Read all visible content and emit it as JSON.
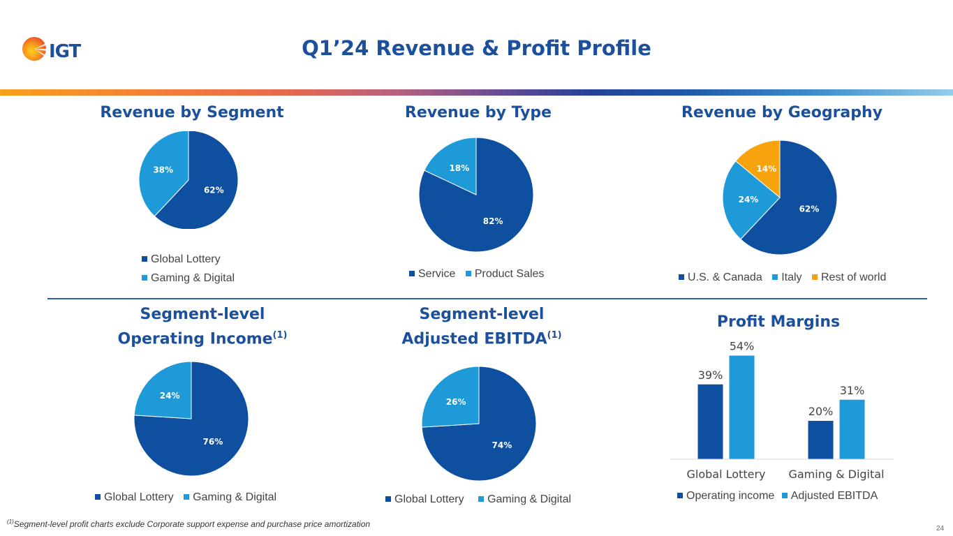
{
  "header": {
    "logo_text": "IGT",
    "title": "Q1’24 Revenue & Profit Profile"
  },
  "colors": {
    "dark_blue": "#0f4f9f",
    "light_blue": "#1e9ad8",
    "orange": "#f6a30e",
    "title_blue": "#1c4f9c"
  },
  "chart_data": [
    {
      "type": "pie",
      "title": "Revenue by Segment",
      "labels": [
        "Global Lottery",
        "Gaming & Digital"
      ],
      "values": [
        62,
        38
      ],
      "data_labels": [
        "62%",
        "38%"
      ],
      "legend_position": "bottom"
    },
    {
      "type": "pie",
      "title": "Revenue by Type",
      "labels": [
        "Service",
        "Product Sales"
      ],
      "values": [
        82,
        18
      ],
      "data_labels": [
        "82%",
        "18%"
      ],
      "legend_position": "bottom"
    },
    {
      "type": "pie",
      "title": "Revenue by Geography",
      "labels": [
        "U.S. & Canada",
        "Italy",
        "Rest of world"
      ],
      "values": [
        62,
        24,
        14
      ],
      "data_labels": [
        "62%",
        "24%",
        "14%"
      ],
      "legend_position": "bottom"
    },
    {
      "type": "pie",
      "title_line1": "Segment-level",
      "title_line2": "Operating Income",
      "title_sup": "(1)",
      "labels": [
        "Global Lottery",
        "Gaming & Digital"
      ],
      "values": [
        76,
        24
      ],
      "data_labels": [
        "76%",
        "24%"
      ],
      "legend_position": "bottom"
    },
    {
      "type": "pie",
      "title_line1": "Segment-level",
      "title_line2": "Adjusted EBITDA",
      "title_sup": "(1)",
      "labels": [
        "Global Lottery",
        "Gaming & Digital"
      ],
      "values": [
        74,
        26
      ],
      "data_labels": [
        "74%",
        "26%"
      ],
      "legend_position": "bottom"
    },
    {
      "type": "bar",
      "title": "Profit Margins",
      "categories": [
        "Global Lottery",
        "Gaming & Digital"
      ],
      "series": [
        {
          "name": "Operating income",
          "values": [
            39,
            20
          ],
          "data_labels": [
            "39%",
            "20%"
          ]
        },
        {
          "name": "Adjusted EBITDA",
          "values": [
            54,
            31
          ],
          "data_labels": [
            "54%",
            "31%"
          ]
        }
      ],
      "ylim": [
        0,
        60
      ],
      "legend_position": "bottom"
    }
  ],
  "footer": {
    "footnote_sup": "(1)",
    "footnote": "Segment-level profit charts exclude Corporate support expense and purchase price amortization",
    "page_number": "24"
  }
}
